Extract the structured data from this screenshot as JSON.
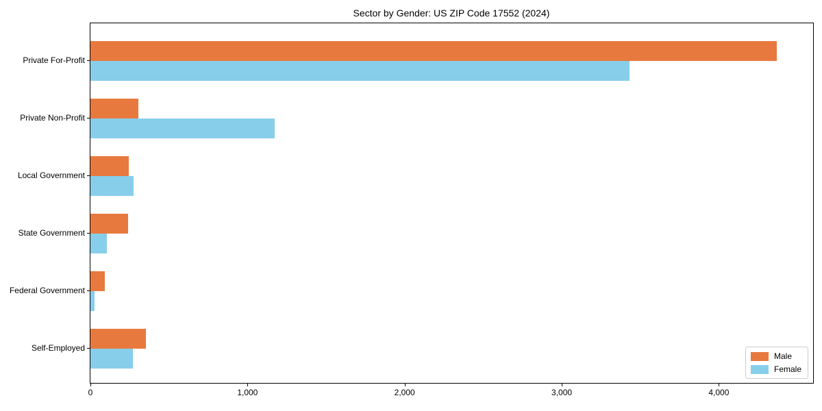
{
  "title": "Sector by Gender: US ZIP Code 17552 (2024)",
  "chart_data": {
    "type": "bar",
    "orientation": "horizontal",
    "title": "Sector by Gender: US ZIP Code 17552 (2024)",
    "categories": [
      "Private For-Profit",
      "Private Non-Profit",
      "Local Government",
      "State Government",
      "Federal Government",
      "Self-Employed"
    ],
    "series": [
      {
        "name": "Male",
        "color": "#e8793e",
        "values": [
          4370,
          305,
          245,
          240,
          90,
          355
        ]
      },
      {
        "name": "Female",
        "color": "#87ceeb",
        "values": [
          3430,
          1175,
          275,
          105,
          25,
          270
        ]
      }
    ],
    "xlabel": "",
    "ylabel": "",
    "xlim": [
      0,
      4600
    ],
    "xticks": [
      0,
      1000,
      2000,
      3000,
      4000
    ],
    "xtick_labels": [
      "0",
      "1,000",
      "2,000",
      "3,000",
      "4,000"
    ],
    "grid": false,
    "legend": {
      "position": "lower right",
      "entries": [
        "Male",
        "Female"
      ]
    }
  },
  "colors": {
    "male": "#e8793e",
    "female": "#87ceeb",
    "spine": "#000000",
    "background": "#ffffff",
    "legend_border": "#cccccc"
  }
}
